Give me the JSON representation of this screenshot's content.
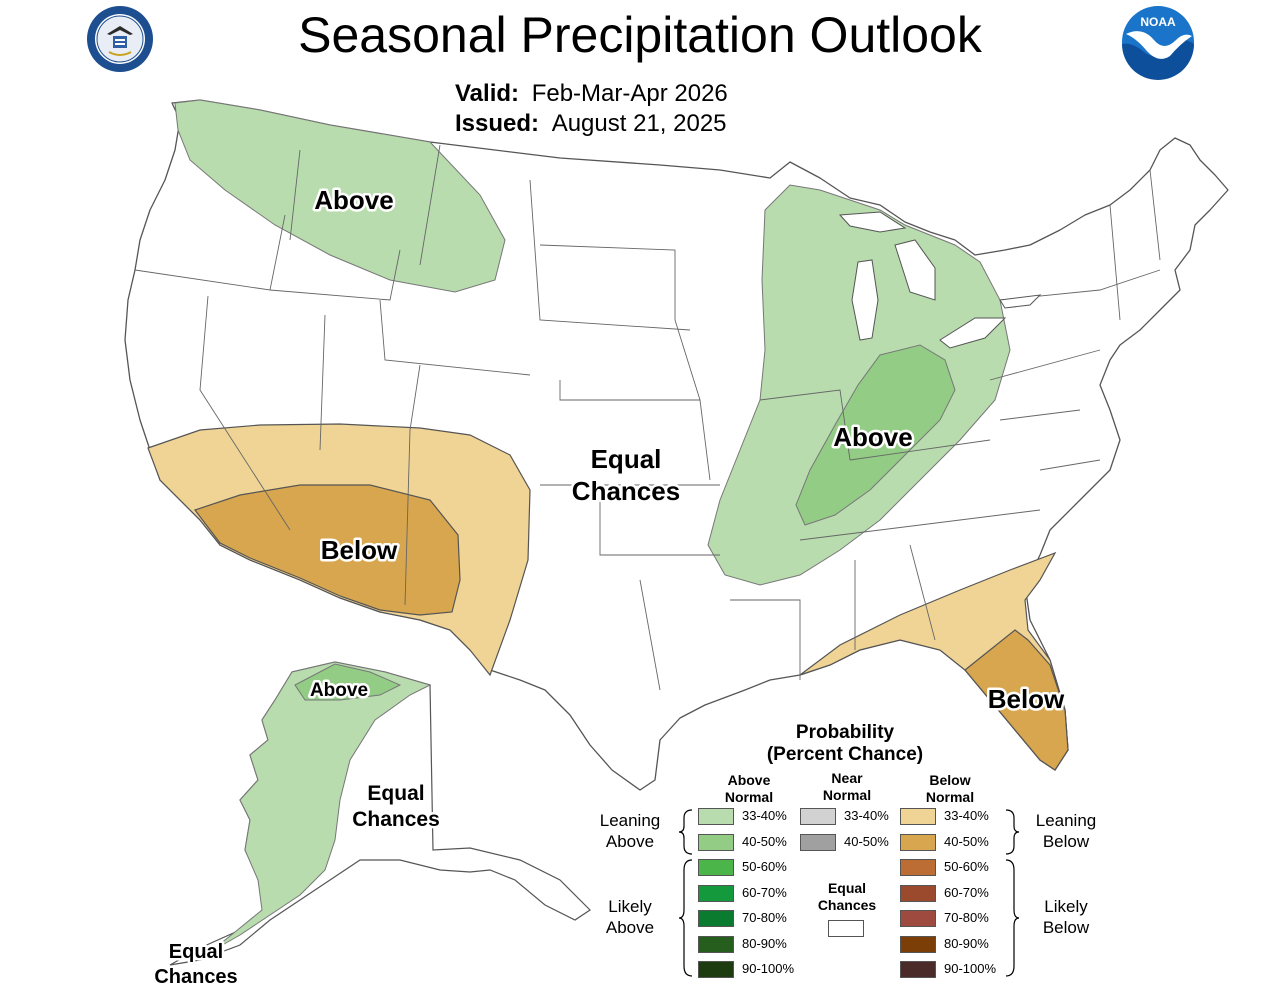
{
  "title": "Seasonal Precipitation Outlook",
  "valid": {
    "label": "Valid:",
    "value": "Feb-Mar-Apr 2026"
  },
  "issued": {
    "label": "Issued:",
    "value": "August 21, 2025"
  },
  "logos": {
    "left": "department-of-commerce-seal",
    "right": "noaa-logo",
    "noaa_text": "NOAA"
  },
  "map_labels": {
    "northwest": "Above",
    "midwest": "Above",
    "southwest": "Below",
    "southeast": "Below",
    "center_line1": "Equal",
    "center_line2": "Chances",
    "alaska_north": "Above",
    "alaska_east_line1": "Equal",
    "alaska_east_line2": "Chances",
    "aleutian_line1": "Equal",
    "aleutian_line2": "Chances"
  },
  "legend": {
    "title_line1": "Probability",
    "title_line2": "(Percent Chance)",
    "columns": {
      "above": [
        "Above",
        "Normal"
      ],
      "near": [
        "Near",
        "Normal"
      ],
      "below": [
        "Below",
        "Normal"
      ]
    },
    "leaning_above": [
      "Leaning",
      "Above"
    ],
    "likely_above": [
      "Likely",
      "Above"
    ],
    "leaning_below": [
      "Leaning",
      "Below"
    ],
    "likely_below": [
      "Likely",
      "Below"
    ],
    "equal_chances": [
      "Equal",
      "Chances"
    ],
    "above": [
      {
        "label": "33-40%",
        "color": "#b8dcae"
      },
      {
        "label": "40-50%",
        "color": "#93cc84"
      },
      {
        "label": "50-60%",
        "color": "#4bb549"
      },
      {
        "label": "60-70%",
        "color": "#149a3c"
      },
      {
        "label": "70-80%",
        "color": "#0a7b2f"
      },
      {
        "label": "80-90%",
        "color": "#265e1d"
      },
      {
        "label": "90-100%",
        "color": "#1d3d11"
      }
    ],
    "near": [
      {
        "label": "33-40%",
        "color": "#d2d2d2"
      },
      {
        "label": "40-50%",
        "color": "#a0a0a0"
      }
    ],
    "below": [
      {
        "label": "33-40%",
        "color": "#f0d495"
      },
      {
        "label": "40-50%",
        "color": "#d8a64e"
      },
      {
        "label": "50-60%",
        "color": "#bb6d34"
      },
      {
        "label": "60-70%",
        "color": "#9c4a2d"
      },
      {
        "label": "70-80%",
        "color": "#9e4a3f"
      },
      {
        "label": "80-90%",
        "color": "#7a3e06"
      },
      {
        "label": "90-100%",
        "color": "#4b2a2a"
      }
    ]
  },
  "colors": {
    "above_33_40": "#b8dcae",
    "above_40_50": "#93cc84",
    "below_33_40": "#f0d495",
    "below_40_50": "#d8a64e",
    "border": "#555555"
  }
}
